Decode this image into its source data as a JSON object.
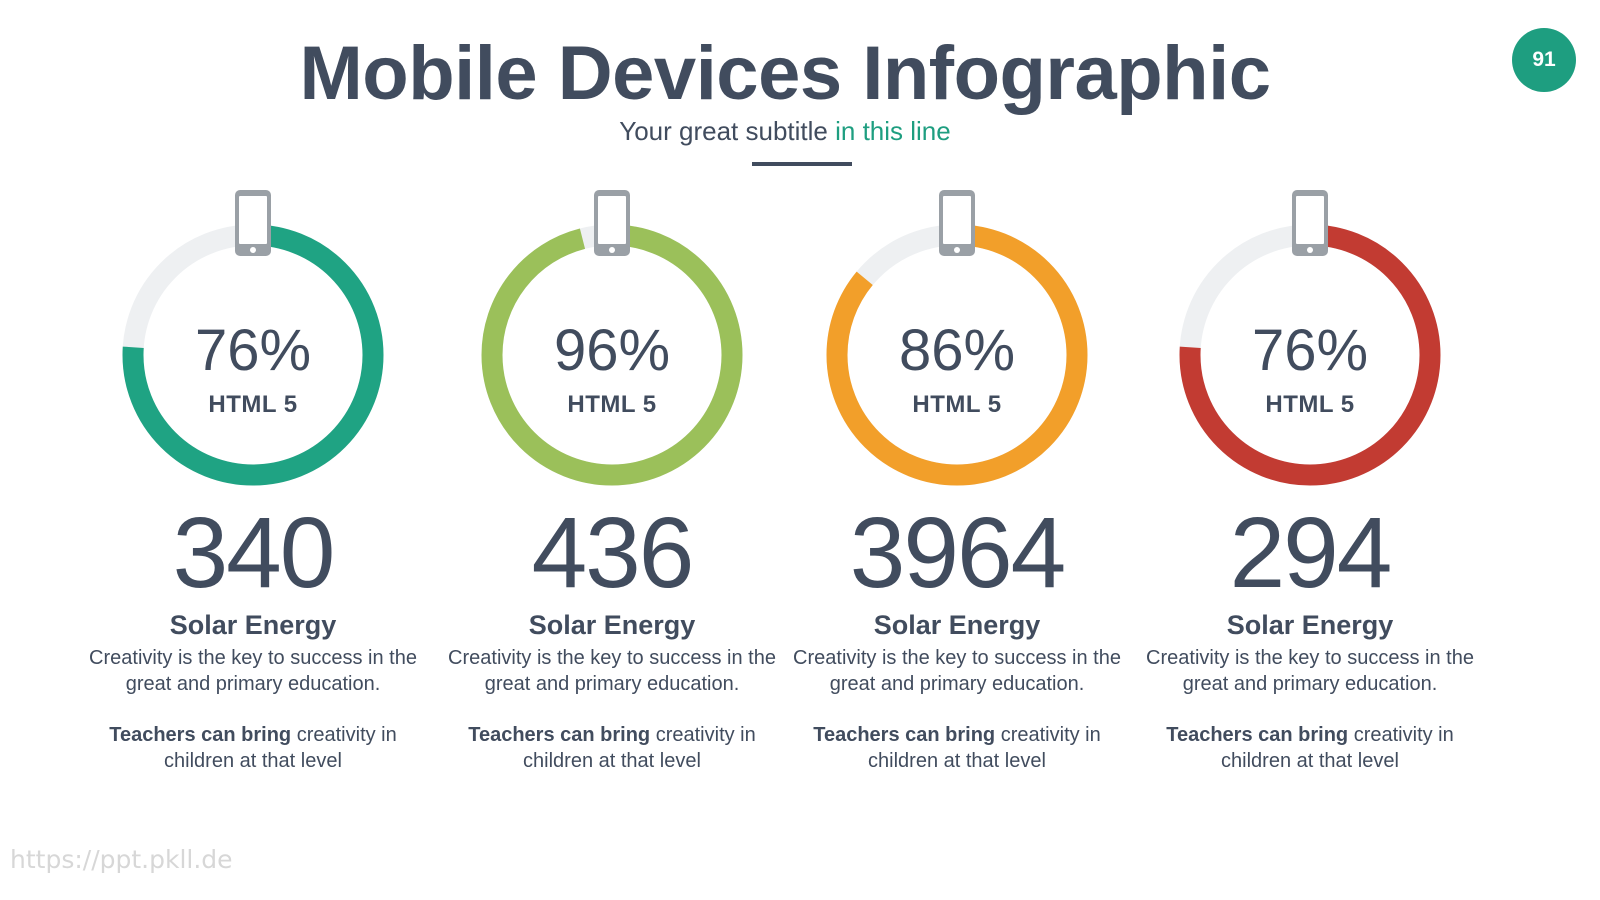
{
  "header": {
    "title": "Mobile Devices Infographic",
    "subtitle_main": "Your great subtitle",
    "subtitle_accent": "in this line",
    "page_number": "91"
  },
  "colors": {
    "text": "#414c5e",
    "track": "#eef0f2",
    "accent_teal": "#1e9e80"
  },
  "cards": [
    {
      "percent_label": "76%",
      "percent": 76,
      "color": "#1fa383",
      "icon": "smartphone-icon",
      "ring_label": "HTML 5",
      "number": "340",
      "title": "Solar Energy",
      "desc": "Creativity is the key to success in the great and primary education.",
      "desc2_bold": "Teachers can bring",
      "desc2_rest": " creativity in children at that level"
    },
    {
      "percent_label": "96%",
      "percent": 96,
      "color": "#9bc05a",
      "icon": "smartphone-icon",
      "ring_label": "HTML 5",
      "number": "436",
      "title": "Solar Energy",
      "desc": "Creativity is the key to success in the great and primary education.",
      "desc2_bold": "Teachers can bring",
      "desc2_rest": " creativity in children at that level"
    },
    {
      "percent_label": "86%",
      "percent": 86,
      "color": "#f29f2a",
      "icon": "smartphone-icon",
      "ring_label": "HTML 5",
      "number": "3964",
      "title": "Solar Energy",
      "desc": "Creativity is the key to success in the great and primary education.",
      "desc2_bold": "Teachers can bring",
      "desc2_rest": " creativity in children at that level"
    },
    {
      "percent_label": "76%",
      "percent": 76,
      "color": "#c23b32",
      "icon": "smartphone-icon",
      "ring_label": "HTML 5",
      "number": "294",
      "title": "Solar Energy",
      "desc": "Creativity is the key to success in the great and primary education.",
      "desc2_bold": "Teachers can bring",
      "desc2_rest": " creativity in children at that level"
    }
  ],
  "watermark": "https://ppt.pkll.de"
}
